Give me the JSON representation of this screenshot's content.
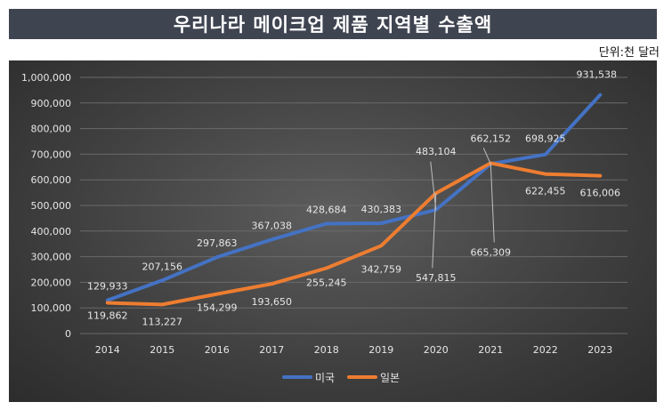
{
  "header": {
    "title": "우리나라 메이크업 제품 지역별 수출액"
  },
  "unit": "단위:천 달러",
  "colors": {
    "title_bg": "#3f4451",
    "us": "#4472c4",
    "jp": "#ed7d31",
    "label": "#e6e6e6",
    "grid": "#6a6a6a"
  },
  "chart_data": {
    "type": "line",
    "title": "우리나라 메이크업 제품 지역별 수출액",
    "xlabel": "",
    "ylabel": "",
    "x": [
      "2014",
      "2015",
      "2016",
      "2017",
      "2018",
      "2019",
      "2020",
      "2021",
      "2022",
      "2023"
    ],
    "ylim": [
      0,
      1000000
    ],
    "yticks": [
      "0",
      "100,000",
      "200,000",
      "300,000",
      "400,000",
      "500,000",
      "600,000",
      "700,000",
      "800,000",
      "900,000",
      "1,000,000"
    ],
    "grid": true,
    "legend_position": "bottom-center",
    "series": [
      {
        "name": "미국",
        "values": [
          129933,
          207156,
          297863,
          367038,
          428684,
          430383,
          483104,
          662152,
          698925,
          931538
        ],
        "labels": [
          "129,933",
          "207,156",
          "297,863",
          "367,038",
          "428,684",
          "430,383",
          "483,104",
          "662,152",
          "698,925",
          "931,538"
        ]
      },
      {
        "name": "일본",
        "values": [
          119862,
          113227,
          154299,
          193650,
          255245,
          342759,
          547815,
          665309,
          622455,
          616006
        ],
        "labels": [
          "119,862",
          "113,227",
          "154,299",
          "193,650",
          "255,245",
          "342,759",
          "547,815",
          "665,309",
          "622,455",
          "616,006"
        ]
      }
    ]
  }
}
